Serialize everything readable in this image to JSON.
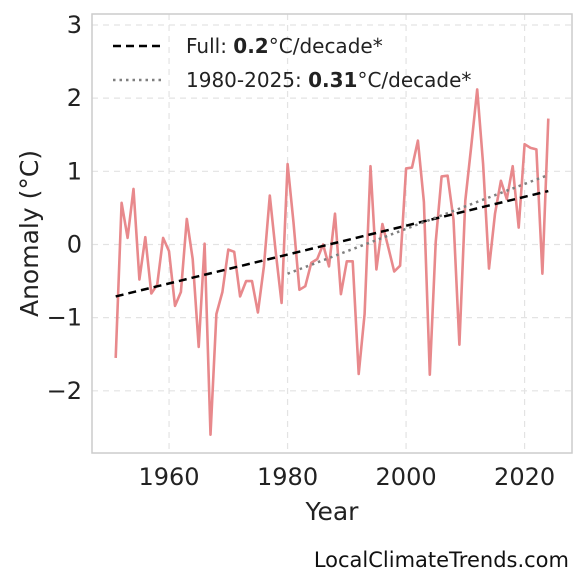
{
  "chart_data": {
    "type": "line",
    "xlabel": "Year",
    "ylabel": "Anomaly (°C)",
    "xlim": [
      1947,
      2028
    ],
    "ylim": [
      -2.85,
      3.15
    ],
    "xticks": [
      1960,
      1980,
      2000,
      2020
    ],
    "yticks": [
      -2,
      -1,
      0,
      1,
      2,
      3
    ],
    "ytick_labels": [
      "−2",
      "−1",
      "0",
      "1",
      "2",
      "3"
    ],
    "grid": true,
    "legend_position": "top-left",
    "series": [
      {
        "color": "#e8898c",
        "x": [
          1951,
          1952,
          1953,
          1954,
          1955,
          1956,
          1957,
          1958,
          1959,
          1960,
          1961,
          1962,
          1963,
          1964,
          1965,
          1966,
          1967,
          1968,
          1969,
          1970,
          1971,
          1972,
          1973,
          1974,
          1975,
          1976,
          1977,
          1978,
          1979,
          1980,
          1981,
          1982,
          1983,
          1984,
          1985,
          1986,
          1987,
          1988,
          1989,
          1990,
          1991,
          1992,
          1993,
          1994,
          1995,
          1996,
          1997,
          1998,
          1999,
          2000,
          2001,
          2002,
          2003,
          2004,
          2005,
          2006,
          2007,
          2008,
          2009,
          2010,
          2011,
          2012,
          2013,
          2014,
          2015,
          2016,
          2017,
          2018,
          2019,
          2020,
          2021,
          2022,
          2023,
          2024
        ],
        "y": [
          -1.55,
          0.57,
          0.09,
          0.76,
          -0.48,
          0.1,
          -0.67,
          -0.55,
          0.09,
          -0.09,
          -0.84,
          -0.65,
          0.35,
          -0.2,
          -1.4,
          0.01,
          -2.6,
          -0.95,
          -0.65,
          -0.07,
          -0.1,
          -0.71,
          -0.5,
          -0.5,
          -0.93,
          -0.3,
          0.67,
          -0.1,
          -0.8,
          1.1,
          0.3,
          -0.62,
          -0.57,
          -0.25,
          -0.2,
          0.0,
          -0.3,
          0.42,
          -0.68,
          -0.23,
          -0.23,
          -1.77,
          -0.95,
          1.07,
          -0.34,
          0.28,
          -0.04,
          -0.37,
          -0.29,
          1.04,
          1.05,
          1.42,
          0.58,
          -1.78,
          0.03,
          0.93,
          0.94,
          0.34,
          -1.37,
          0.6,
          1.35,
          2.12,
          1.1,
          -0.33,
          0.42,
          0.87,
          0.62,
          1.07,
          0.23,
          1.37,
          1.32,
          1.3,
          -0.4,
          1.72
        ]
      }
    ],
    "trends": [
      {
        "label_prefix": "Full: ",
        "label_value": "0.2",
        "label_suffix": "°C/decade*",
        "style": "dashed",
        "color": "#000000",
        "x": [
          1951,
          2024
        ],
        "y": [
          -0.71,
          0.73
        ]
      },
      {
        "label_prefix": "1980-2025: ",
        "label_value": "0.31",
        "label_suffix": "°C/decade*",
        "style": "dotted",
        "color": "#7f7f7f",
        "x": [
          1980,
          2024
        ],
        "y": [
          -0.4,
          0.95
        ]
      }
    ]
  },
  "watermark": "LocalClimateTrends.com"
}
